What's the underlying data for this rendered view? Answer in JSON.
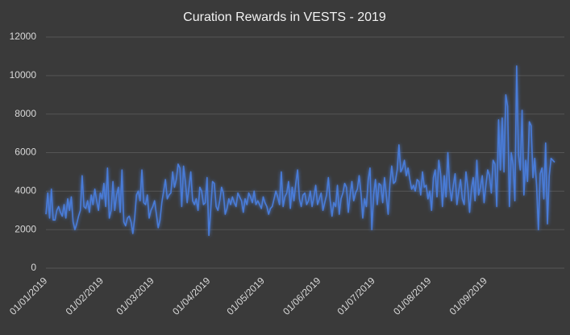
{
  "chart_data": {
    "type": "line",
    "title": "Curation Rewards in VESTS - 2019",
    "categories": [
      "01/01/2019",
      null,
      null,
      null,
      null,
      null,
      null,
      null,
      null,
      null,
      null,
      null,
      null,
      null,
      null,
      null,
      null,
      null,
      null,
      null,
      null,
      null,
      null,
      null,
      null,
      null,
      null,
      null,
      null,
      null,
      null,
      "01/02/2019",
      null,
      null,
      null,
      null,
      null,
      null,
      null,
      null,
      null,
      null,
      null,
      null,
      null,
      null,
      null,
      null,
      null,
      null,
      null,
      null,
      null,
      null,
      null,
      null,
      null,
      null,
      null,
      "01/03/2019",
      null,
      null,
      null,
      null,
      null,
      null,
      null,
      null,
      null,
      null,
      null,
      null,
      null,
      null,
      null,
      null,
      null,
      null,
      null,
      null,
      null,
      null,
      null,
      null,
      null,
      null,
      null,
      null,
      null,
      null,
      "01/04/2019",
      null,
      null,
      null,
      null,
      null,
      null,
      null,
      null,
      null,
      null,
      null,
      null,
      null,
      null,
      null,
      null,
      null,
      null,
      null,
      null,
      null,
      null,
      null,
      null,
      null,
      null,
      null,
      null,
      null,
      "01/05/2019",
      null,
      null,
      null,
      null,
      null,
      null,
      null,
      null,
      null,
      null,
      null,
      null,
      null,
      null,
      null,
      null,
      null,
      null,
      null,
      null,
      null,
      null,
      null,
      null,
      null,
      null,
      null,
      null,
      null,
      null,
      "01/06/2019",
      null,
      null,
      null,
      null,
      null,
      null,
      null,
      null,
      null,
      null,
      null,
      null,
      null,
      null,
      null,
      null,
      null,
      null,
      null,
      null,
      null,
      null,
      null,
      null,
      null,
      null,
      null,
      null,
      null,
      "01/07/2019",
      null,
      null,
      null,
      null,
      null,
      null,
      null,
      null,
      null,
      null,
      null,
      null,
      null,
      null,
      null,
      null,
      null,
      null,
      null,
      null,
      null,
      null,
      null,
      null,
      null,
      null,
      null,
      null,
      null,
      null,
      "01/08/2019",
      null,
      null,
      null,
      null,
      null,
      null,
      null,
      null,
      null,
      null,
      null,
      null,
      null,
      null,
      null,
      null,
      null,
      null,
      null,
      null,
      null,
      null,
      null,
      null,
      null,
      null,
      null,
      null,
      null,
      null,
      "01/09/2019",
      null,
      null,
      null,
      null,
      null,
      null,
      null,
      null,
      null,
      null,
      null,
      null,
      null,
      null,
      null,
      null,
      null,
      null,
      null,
      null,
      null,
      null,
      null,
      null,
      null,
      null,
      null,
      null,
      null,
      null,
      null,
      null,
      null,
      null,
      null,
      null,
      null,
      null
    ],
    "values": [
      2800,
      3900,
      2600,
      4100,
      2500,
      2500,
      3000,
      3200,
      2900,
      2700,
      3300,
      2600,
      3600,
      3000,
      3700,
      2400,
      2000,
      2300,
      2700,
      3000,
      4800,
      3200,
      3100,
      3500,
      2900,
      3800,
      3300,
      4100,
      3500,
      3000,
      3900,
      3600,
      4400,
      3200,
      5200,
      2600,
      3000,
      4500,
      3000,
      3800,
      4200,
      2900,
      5100,
      2400,
      2200,
      2600,
      2700,
      2400,
      1800,
      2600,
      3800,
      4000,
      3500,
      5100,
      3400,
      3300,
      3800,
      2600,
      3000,
      3200,
      3500,
      2800,
      2100,
      2500,
      3400,
      4000,
      4600,
      3600,
      3800,
      3900,
      5000,
      4200,
      4600,
      5400,
      5200,
      3200,
      5300,
      4500,
      3400,
      4200,
      5000,
      3500,
      3300,
      3600,
      3000,
      4200,
      4000,
      3300,
      3400,
      4700,
      1700,
      3000,
      4500,
      4400,
      3200,
      3000,
      3500,
      4200,
      3900,
      2800,
      3100,
      3600,
      3300,
      3700,
      3400,
      3200,
      3900,
      3700,
      3500,
      2900,
      3600,
      3300,
      3900,
      3700,
      3400,
      4000,
      3300,
      3500,
      3300,
      3100,
      3700,
      3400,
      3200,
      2800,
      3100,
      3200,
      3600,
      4000,
      3700,
      3300,
      5000,
      3200,
      3700,
      3900,
      4500,
      3100,
      4200,
      3500,
      4400,
      5100,
      3600,
      3200,
      3800,
      3900,
      3300,
      3500,
      4000,
      3200,
      3700,
      4300,
      3300,
      3600,
      3900,
      3000,
      3400,
      3800,
      4700,
      3500,
      2700,
      3400,
      3200,
      4300,
      2800,
      3600,
      3900,
      4400,
      4200,
      2900,
      3800,
      4500,
      3500,
      3900,
      4100,
      4800,
      3900,
      2600,
      3600,
      3200,
      4600,
      5200,
      2000,
      3800,
      4600,
      3300,
      4400,
      4300,
      3400,
      4700,
      3800,
      2800,
      4400,
      5300,
      4400,
      4500,
      5100,
      6400,
      5000,
      5200,
      5600,
      4800,
      5200,
      4600,
      4100,
      4300,
      4000,
      4600,
      4500,
      3800,
      5000,
      4200,
      4300,
      3600,
      4000,
      3000,
      4700,
      5100,
      3700,
      5600,
      4900,
      3200,
      4800,
      3700,
      6000,
      4200,
      3500,
      4300,
      4900,
      3300,
      4000,
      4600,
      3600,
      3300,
      5000,
      4200,
      2900,
      4100,
      4700,
      3500,
      5600,
      3800,
      4200,
      4800,
      3400,
      4300,
      5100,
      4800,
      3900,
      5600,
      5400,
      3200,
      7700,
      5100,
      7800,
      5000,
      9000,
      8400,
      3200,
      6000,
      5400,
      3500,
      10500,
      5900,
      5100,
      8200,
      3800,
      5600,
      4500,
      7600,
      7400,
      4700,
      5700,
      4300,
      2000,
      4900,
      5200,
      3600,
      6500,
      2300,
      4800,
      5700,
      5600,
      5500
    ],
    "color": "#4a7bd8",
    "ylim": [
      0,
      12000
    ],
    "yticks": [
      0,
      2000,
      4000,
      6000,
      8000,
      10000,
      12000
    ],
    "grid": true
  }
}
